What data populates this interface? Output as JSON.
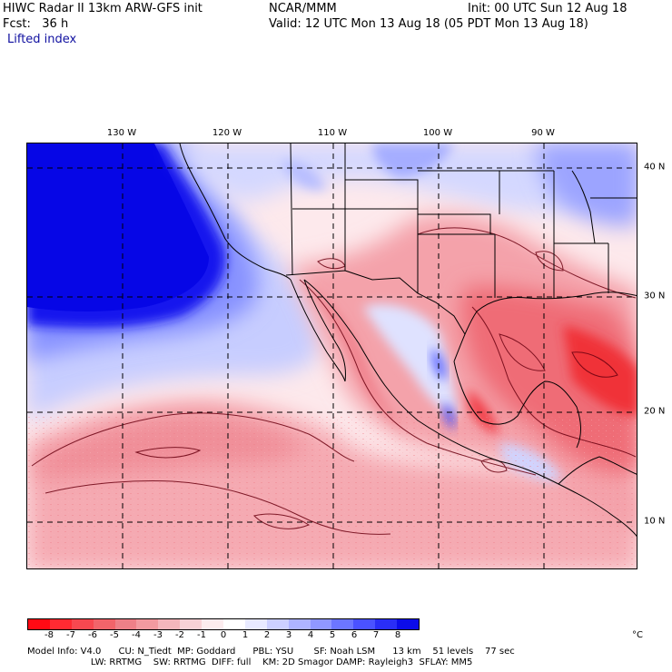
{
  "header": {
    "model_title": "HIWC Radar II 13km ARW-GFS init",
    "org": "NCAR/MMM",
    "init": "Init: 00 UTC Sun 12 Aug 18",
    "fcst": "Fcst:   36 h",
    "valid": "Valid: 12 UTC Mon 13 Aug 18 (05 PDT Mon 13 Aug 18)",
    "field": "Lifted index"
  },
  "map": {
    "lon_labels": [
      "130 W",
      "120 W",
      "110 W",
      "100 W",
      "90 W"
    ],
    "lat_labels": [
      "40 N",
      "30 N",
      "20 N",
      "10 N"
    ],
    "regions": {
      "strongly_stable": "North Pacific west of California",
      "unstable": "Mexico, Gulf of Mexico, tropical eastern Pacific"
    }
  },
  "colorbar": {
    "ticks": [
      "-8",
      "-7",
      "-6",
      "-5",
      "-4",
      "-3",
      "-2",
      "-1",
      "0",
      "1",
      "2",
      "3",
      "4",
      "5",
      "6",
      "7",
      "8"
    ],
    "unit": "°C",
    "colors": [
      "#ff0a14",
      "#ff2a32",
      "#f84850",
      "#f2646a",
      "#ee8088",
      "#f29aa0",
      "#f4b6bc",
      "#f8d2d6",
      "#fcecee",
      "#ffffff",
      "#e8eaff",
      "#ccd0ff",
      "#aeb4ff",
      "#9098ff",
      "#6c76ff",
      "#4a52ff",
      "#2a2ef6",
      "#0c0cea"
    ]
  },
  "footer": {
    "line1": "Model Info: V4.0      CU: N_Tiedt  MP: Goddard      PBL: YSU       SF: Noah LSM      13 km    51 levels    77 sec",
    "line2": "                      LW: RRTMG    SW: RRTMG  DIFF: full    KM: 2D Smagor DAMP: Rayleigh3  SFLAY: MM5"
  }
}
